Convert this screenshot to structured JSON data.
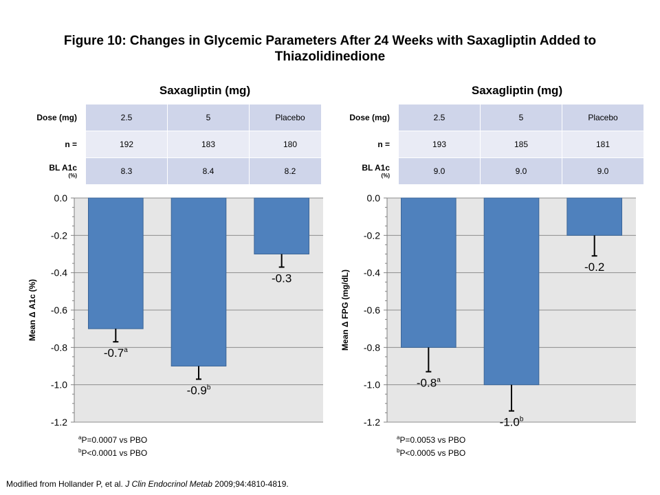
{
  "title": "Figure 10: Changes in Glycemic Parameters After 24 Weeks with Saxagliptin Added to Thiazolidinedione",
  "panels": [
    {
      "heading": "Saxagliptin (mg)",
      "table": {
        "rows": [
          {
            "label": "Dose (mg)",
            "unit": "",
            "cells": [
              "2.5",
              "5",
              "Placebo"
            ]
          },
          {
            "label": "n =",
            "unit": "",
            "cells": [
              "192",
              "183",
              "180"
            ]
          },
          {
            "label": "BL A1c",
            "unit": "(%)",
            "cells": [
              "8.3",
              "8.4",
              "8.2"
            ]
          }
        ]
      },
      "footnotes": [
        {
          "mark": "a",
          "text": "P=0.0007 vs PBO"
        },
        {
          "mark": "b",
          "text": "P<0.0001 vs PBO"
        }
      ]
    },
    {
      "heading": "Saxagliptin (mg)",
      "table": {
        "rows": [
          {
            "label": "Dose (mg)",
            "unit": "",
            "cells": [
              "2.5",
              "5",
              "Placebo"
            ]
          },
          {
            "label": "n =",
            "unit": "",
            "cells": [
              "193",
              "185",
              "181"
            ]
          },
          {
            "label": "BL A1c",
            "unit": "(%)",
            "cells": [
              "9.0",
              "9.0",
              "9.0"
            ]
          }
        ]
      },
      "footnotes": [
        {
          "mark": "a",
          "text": "P=0.0053 vs PBO"
        },
        {
          "mark": "b",
          "text": "P<0.0005 vs PBO"
        }
      ]
    }
  ],
  "chart_data": [
    {
      "type": "bar",
      "categories": [
        "2.5",
        "5",
        "Placebo"
      ],
      "values": [
        -0.7,
        -0.9,
        -0.3
      ],
      "error_low": [
        -0.77,
        -0.97,
        -0.37
      ],
      "data_labels": [
        "-0.7",
        "-0.9",
        "-0.3"
      ],
      "label_marks": [
        "a",
        "b",
        ""
      ],
      "ylabel": "Mean Δ A1c (%)",
      "ylim": [
        -1.2,
        0.0
      ],
      "yticks": [
        "0.0",
        "-0.2",
        "-0.4",
        "-0.6",
        "-0.8",
        "-1.0",
        "-1.2"
      ],
      "grid": true,
      "bar_color": "#4f81bd",
      "plot_bg": "#e6e6e6"
    },
    {
      "type": "bar",
      "categories": [
        "2.5",
        "5",
        "Placebo"
      ],
      "values": [
        -0.8,
        -1.0,
        -0.2
      ],
      "error_low": [
        -0.93,
        -1.14,
        -0.31
      ],
      "data_labels": [
        "-0.8",
        "-1.0",
        "-0.2"
      ],
      "label_marks": [
        "a",
        "b",
        ""
      ],
      "ylabel": "Mean Δ FPG (mg/dL)",
      "ylim": [
        -1.2,
        0.0
      ],
      "yticks": [
        "0.0",
        "-0.2",
        "-0.4",
        "-0.6",
        "-0.8",
        "-1.0",
        "-1.2"
      ],
      "grid": true,
      "bar_color": "#4f81bd",
      "plot_bg": "#e6e6e6"
    }
  ],
  "source": {
    "prefix": "Modified from Hollander P, et al. ",
    "journal": "J Clin Endocrinol Metab",
    "suffix": " 2009;94:4810-4819."
  }
}
